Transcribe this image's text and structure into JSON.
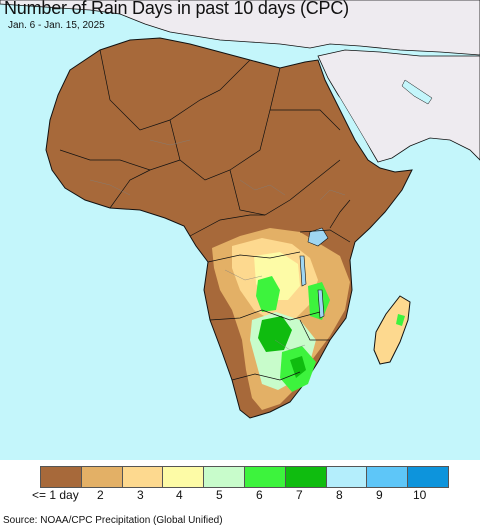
{
  "title": "Number of Rain Days in past 10 days (CPC)",
  "date_range": "Jan. 6 - Jan. 15, 2025",
  "source": "Source: NOAA/CPC Precipitation (Global Unified)",
  "colors": {
    "ocean": "#c4f6fb",
    "land_outside": "#eeebf0",
    "border": "#111111",
    "admin_border": "#7f7f7f",
    "lake": "#9fd6f2"
  },
  "legend": {
    "bins": [
      {
        "label": "<= 1 day",
        "value": 1,
        "color": "#a7693a"
      },
      {
        "label": "2",
        "value": 2,
        "color": "#e3b066"
      },
      {
        "label": "3",
        "value": 3,
        "color": "#fdd98f"
      },
      {
        "label": "4",
        "value": 4,
        "color": "#fdfba6"
      },
      {
        "label": "5",
        "value": 5,
        "color": "#c8fccb"
      },
      {
        "label": "6",
        "value": 6,
        "color": "#3df33d"
      },
      {
        "label": "7",
        "value": 7,
        "color": "#0fbc0f"
      },
      {
        "label": "8",
        "value": 8,
        "color": "#b4eefc"
      },
      {
        "label": "9",
        "value": 9,
        "color": "#5ec6f8"
      },
      {
        "label": "10",
        "value": 10,
        "color": "#0d94dc"
      }
    ]
  }
}
